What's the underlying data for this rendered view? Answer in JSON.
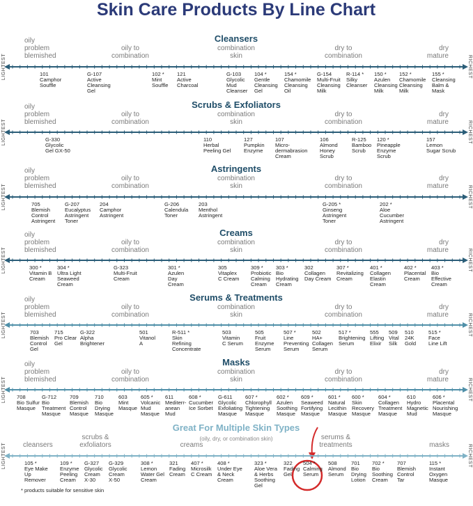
{
  "title": "Skin Care Products By Line Chart",
  "side_labels": {
    "left": "LIGHTEST",
    "right": "RICHEST"
  },
  "zones": [
    [
      "oily",
      "problem",
      "blemished"
    ],
    [
      "oily to",
      "combination"
    ],
    [
      "combination",
      "skin"
    ],
    [
      "dry to",
      "combination"
    ],
    [
      "dry",
      "mature"
    ]
  ],
  "sections": [
    {
      "title": "Cleansers",
      "products": [
        [
          "101",
          "Camphor",
          "Souffle"
        ],
        [
          "G-107",
          "Active",
          "Cleansing",
          "Gel"
        ],
        [
          "102 *",
          "Mint",
          "Souffle"
        ],
        [
          "121",
          "Active",
          "Charcoal"
        ],
        [
          "G-103",
          "Glycolic",
          "Mud",
          "Cleanser"
        ],
        [
          "104 *",
          "Gentle",
          "Cleansing",
          "Gel"
        ],
        [
          "154 *",
          "Chamomile",
          "Cleansing",
          "Oil"
        ],
        [
          "G-154",
          "Multi-Fruit",
          "Cleansing",
          "Milk"
        ],
        [
          "R-114 *",
          "Silky",
          "Cleanser"
        ],
        [
          "150 *",
          "Azulen",
          "Cleansing",
          "Milk"
        ],
        [
          "152 *",
          "Chamomile",
          "Cleansing",
          "Milk"
        ],
        [
          "155 *",
          "Cleansing",
          "Balm &",
          "Mask"
        ]
      ]
    },
    {
      "title": "Scrubs & Exfoliators",
      "products": [
        [
          "G-330",
          "Glycolic",
          "Gel GX-50"
        ],
        [
          "110",
          "Herbal",
          "Peeling Gel"
        ],
        [
          "127",
          "Pumpkin",
          "Enzyme"
        ],
        [
          "107",
          "Micro-",
          "dermabrasion",
          "Cream"
        ],
        [
          "106",
          "Almond",
          "Honey",
          "Scrub"
        ],
        [
          "R-125",
          "Bamboo",
          "Scrub"
        ],
        [
          "120 *",
          "Pineapple",
          "Enzyme",
          "Scrub"
        ],
        [
          "157",
          "Lemon",
          "Sugar Scrub"
        ]
      ]
    },
    {
      "title": "Astringents",
      "products": [
        [
          "705",
          "Blemish",
          "Control",
          "Astringent"
        ],
        [
          "G-207",
          "Eucalyptus",
          "Astringent",
          "Toner"
        ],
        [
          "204",
          "Camphor",
          "Astringent"
        ],
        [
          "G-206",
          "Calendula",
          "Toner"
        ],
        [
          "203",
          "Menthol",
          "Astringent"
        ],
        [
          "G-205 *",
          "Ginseng",
          "Astringent",
          "Toner"
        ],
        [
          "202 *",
          "Aloe",
          "Cucumber",
          "Astringent"
        ]
      ]
    },
    {
      "title": "Creams",
      "products": [
        [
          "300 *",
          "Vitamin B",
          "Cream"
        ],
        [
          "304 *",
          "Ultra Light",
          "Seaweed",
          "Cream"
        ],
        [
          "G-323",
          "Multi-Fruit",
          "Cream"
        ],
        [
          "301 *",
          "Azulen",
          "Day",
          "Cream"
        ],
        [
          "305",
          "Vitaplex",
          "C Cream"
        ],
        [
          "309 *",
          "Probiotic",
          "Calming",
          "Cream"
        ],
        [
          "303 *",
          "Bio",
          "Hydrating",
          "Cream"
        ],
        [
          "302",
          "Collagen",
          "Day Cream"
        ],
        [
          "307 *",
          "Revitalizing",
          "Cream"
        ],
        [
          "401 *",
          "Collagen",
          "Elastin",
          "Cream"
        ],
        [
          "402 *",
          "Placental",
          "Cream"
        ],
        [
          "403 *",
          "Bio",
          "Effective",
          "Cream"
        ]
      ]
    },
    {
      "title": "Serums & Treatments",
      "products": [
        [
          "703",
          "Blemish",
          "Control",
          "Gel"
        ],
        [
          "715",
          "Pro Clear",
          "Gel"
        ],
        [
          "G-322",
          "Alpha",
          "Brightener"
        ],
        [
          "501",
          "Vitanol",
          "A"
        ],
        [
          "R-511 *",
          "Skin",
          "Refining",
          "Concentrate"
        ],
        [
          "503",
          "Vitamin",
          "C Serum"
        ],
        [
          "505",
          "Fruit",
          "Enzyme",
          "Serum"
        ],
        [
          "507 *",
          "Line",
          "Preventing",
          "Serum"
        ],
        [
          "502",
          "HA+",
          "Collagen",
          "Serum"
        ],
        [
          "517 *",
          "Brightening",
          "Serum"
        ],
        [
          "555",
          "Lifting",
          "Elixir"
        ],
        [
          "509",
          "Vital",
          "Silk"
        ],
        [
          "510",
          "24K",
          "Gold"
        ],
        [
          "515 *",
          "Face",
          "Line Lift"
        ]
      ]
    },
    {
      "title": "Masks",
      "products": [
        [
          "708",
          "Bio Sulfur",
          "Masque"
        ],
        [
          "G-712",
          "Bio",
          "Treatment",
          "Masque"
        ],
        [
          "709",
          "Blemish",
          "Control",
          "Masque"
        ],
        [
          "710",
          "Bio",
          "Drying",
          "Masque"
        ],
        [
          "603",
          "Mint",
          "Masque"
        ],
        [
          "605 *",
          "Volcanic",
          "Mud",
          "Masque"
        ],
        [
          "611",
          "Mediterr-",
          "anean",
          "Mud"
        ],
        [
          "608 *",
          "Cucumber",
          "Ice Sorbet"
        ],
        [
          "G-611",
          "Glycolic",
          "Exfoliating",
          "Masque"
        ],
        [
          "607 *",
          "Chlorophyll",
          "Tightening",
          "Masque"
        ],
        [
          "602 *",
          "Azulen",
          "Soothing",
          "Masque"
        ],
        [
          "609 *",
          "Seaweed",
          "Fortifying",
          "Masque"
        ],
        [
          "601 *",
          "Natural",
          "Lecithin",
          "Masque"
        ],
        [
          "600 *",
          "Skin",
          "Recovery",
          "Masque"
        ],
        [
          "604 *",
          "Collagen",
          "Treatment",
          "Masque"
        ],
        [
          "610",
          "Hydro",
          "Magnetic",
          "Mud"
        ],
        [
          "606 *",
          "Placental",
          "Nourishing",
          "Masque"
        ]
      ]
    },
    {
      "title": "Great For Multiple Skin Types",
      "subtitle": "(oily, dry, or combination skin)",
      "zones": [
        [
          "cleansers"
        ],
        [
          "scrubs &",
          "exfoliators"
        ],
        [
          "creams"
        ],
        [
          "serums &",
          "treatments"
        ],
        [
          "masks"
        ]
      ],
      "products": [
        [
          "105 *",
          "Eye Make",
          "Up",
          "Remover"
        ],
        [
          "109 *",
          "Enzyme",
          "Peeling",
          "Cream"
        ],
        [
          "G-327",
          "Glycolic",
          "Cream",
          "X-30"
        ],
        [
          "G-329",
          "Glycolic",
          "Cream",
          "X-50"
        ],
        [
          "308 *",
          "Lemon",
          "Water Gel",
          "Cream"
        ],
        [
          "321",
          "Fading",
          "Cream"
        ],
        [
          "407 *",
          "Microsilk",
          "C Cream"
        ],
        [
          "408 *",
          "Under Eye",
          "& Neck",
          "Cream"
        ],
        [
          "323 *",
          "Aloe Vera",
          "& Herbs",
          "Soothing",
          "Gel"
        ],
        [
          "322",
          "Fading",
          "Gel"
        ],
        [
          "504 *",
          "Calming",
          "Serum"
        ],
        [
          "508",
          "Almond",
          "Serum"
        ],
        [
          "701",
          "Bio",
          "Drying",
          "Lotion"
        ],
        [
          "702 *",
          "Bio",
          "Soothing",
          "Cream"
        ],
        [
          "707",
          "Blemish",
          "Control",
          "Tar"
        ],
        [
          "115 *",
          "Instant",
          "Oxygen",
          "Masque"
        ]
      ]
    }
  ],
  "footnote": "* products suitable for sensitive skin"
}
